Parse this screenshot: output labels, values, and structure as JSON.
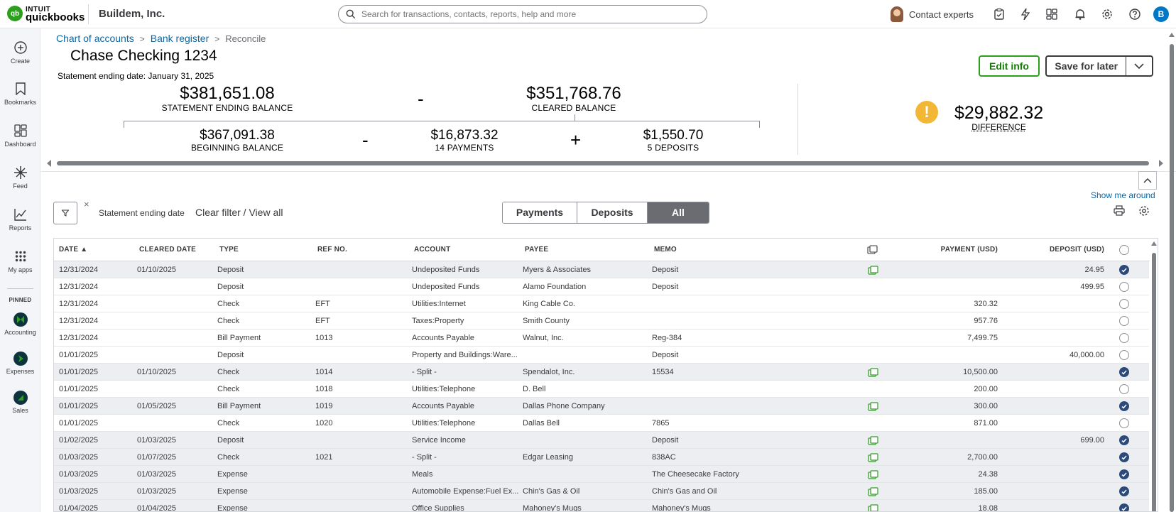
{
  "topbar": {
    "logo_line1": "INTUIT",
    "logo_line2": "quickbooks",
    "logo_mark": "qb",
    "company": "Buildem, Inc.",
    "search_placeholder": "Search for transactions, contacts, reports, help and more",
    "contact_experts": "Contact experts",
    "user_initial": "B"
  },
  "sidebar": {
    "items": [
      {
        "label": "Create",
        "icon": "plus-circle-icon"
      },
      {
        "label": "Bookmarks",
        "icon": "bookmark-icon"
      },
      {
        "label": "Dashboard",
        "icon": "dashboard-icon"
      },
      {
        "label": "Feed",
        "icon": "feed-icon"
      },
      {
        "label": "Reports",
        "icon": "reports-icon"
      },
      {
        "label": "My apps",
        "icon": "apps-grid-icon"
      }
    ],
    "pinned_label": "PINNED",
    "pinned": [
      {
        "label": "Accounting",
        "icon": "accounting-icon"
      },
      {
        "label": "Expenses",
        "icon": "expenses-icon"
      },
      {
        "label": "Sales",
        "icon": "sales-icon"
      }
    ]
  },
  "breadcrumb": {
    "chart_of_accounts": "Chart of accounts",
    "bank_register": "Bank register",
    "current": "Reconcile",
    "sep": ">"
  },
  "header": {
    "account_title": "Chase Checking 1234",
    "statement_date": "Statement ending date: January 31, 2025",
    "edit_info": "Edit info",
    "save_for_later": "Save for later"
  },
  "balances": {
    "statement_ending": {
      "amount": "$381,651.08",
      "caption": "STATEMENT ENDING BALANCE"
    },
    "minus1": "-",
    "cleared": {
      "amount": "$351,768.76",
      "caption": "CLEARED BALANCE"
    },
    "beginning": {
      "amount": "$367,091.38",
      "caption": "BEGINNING BALANCE"
    },
    "minus2": "-",
    "payments": {
      "amount": "$16,873.32",
      "caption": "14 PAYMENTS"
    },
    "plus": "+",
    "deposits": {
      "amount": "$1,550.70",
      "caption": "5 DEPOSITS"
    },
    "difference": {
      "amount": "$29,882.32",
      "caption": "DIFFERENCE"
    },
    "warning_glyph": "!"
  },
  "toolbar": {
    "show_me_around": "Show me around",
    "filter_x": "×",
    "filter_label": "Statement ending date",
    "clear_filter": "Clear filter / View all",
    "tabs": [
      "Payments",
      "Deposits",
      "All"
    ],
    "active_tab": "All"
  },
  "table": {
    "headers": {
      "date": "DATE ▲",
      "cleared_date": "CLEARED DATE",
      "type": "TYPE",
      "ref_no": "REF NO.",
      "account": "ACCOUNT",
      "payee": "PAYEE",
      "memo": "MEMO",
      "payment": "PAYMENT (USD)",
      "deposit": "DEPOSIT (USD)"
    },
    "rows": [
      {
        "date": "12/31/2024",
        "cleared_date": "01/10/2025",
        "type": "Deposit",
        "ref": "",
        "account": "Undeposited Funds",
        "payee": "Myers & Associates",
        "memo": "Deposit",
        "attach": true,
        "payment": "",
        "deposit": "24.95",
        "checked": true
      },
      {
        "date": "12/31/2024",
        "cleared_date": "",
        "type": "Deposit",
        "ref": "",
        "account": "Undeposited Funds",
        "payee": "Alamo Foundation",
        "memo": "Deposit",
        "attach": false,
        "payment": "",
        "deposit": "499.95",
        "checked": false
      },
      {
        "date": "12/31/2024",
        "cleared_date": "",
        "type": "Check",
        "ref": "EFT",
        "account": "Utilities:Internet",
        "payee": "King Cable Co.",
        "memo": "",
        "attach": false,
        "payment": "320.32",
        "deposit": "",
        "checked": false
      },
      {
        "date": "12/31/2024",
        "cleared_date": "",
        "type": "Check",
        "ref": "EFT",
        "account": "Taxes:Property",
        "payee": "Smith County",
        "memo": "",
        "attach": false,
        "payment": "957.76",
        "deposit": "",
        "checked": false
      },
      {
        "date": "12/31/2024",
        "cleared_date": "",
        "type": "Bill Payment",
        "ref": "1013",
        "account": "Accounts Payable",
        "payee": "Walnut, Inc.",
        "memo": "Reg-384",
        "attach": false,
        "payment": "7,499.75",
        "deposit": "",
        "checked": false
      },
      {
        "date": "01/01/2025",
        "cleared_date": "",
        "type": "Deposit",
        "ref": "",
        "account": "Property and Buildings:Ware...",
        "payee": "",
        "memo": "Deposit",
        "attach": false,
        "payment": "",
        "deposit": "40,000.00",
        "checked": false
      },
      {
        "date": "01/01/2025",
        "cleared_date": "01/10/2025",
        "type": "Check",
        "ref": "1014",
        "account": "- Split -",
        "payee": "Spendalot, Inc.",
        "memo": "15534",
        "attach": true,
        "payment": "10,500.00",
        "deposit": "",
        "checked": true
      },
      {
        "date": "01/01/2025",
        "cleared_date": "",
        "type": "Check",
        "ref": "1018",
        "account": "Utilities:Telephone",
        "payee": "D. Bell",
        "memo": "",
        "attach": false,
        "payment": "200.00",
        "deposit": "",
        "checked": false
      },
      {
        "date": "01/01/2025",
        "cleared_date": "01/05/2025",
        "type": "Bill Payment",
        "ref": "1019",
        "account": "Accounts Payable",
        "payee": "Dallas Phone Company",
        "memo": "",
        "attach": true,
        "payment": "300.00",
        "deposit": "",
        "checked": true
      },
      {
        "date": "01/01/2025",
        "cleared_date": "",
        "type": "Check",
        "ref": "1020",
        "account": "Utilities:Telephone",
        "payee": "Dallas Bell",
        "memo": "7865",
        "attach": false,
        "payment": "871.00",
        "deposit": "",
        "checked": false
      },
      {
        "date": "01/02/2025",
        "cleared_date": "01/03/2025",
        "type": "Deposit",
        "ref": "",
        "account": "Service Income",
        "payee": "",
        "memo": "Deposit",
        "attach": true,
        "payment": "",
        "deposit": "699.00",
        "checked": true
      },
      {
        "date": "01/03/2025",
        "cleared_date": "01/07/2025",
        "type": "Check",
        "ref": "1021",
        "account": "- Split -",
        "payee": "Edgar Leasing",
        "memo": "838AC",
        "attach": true,
        "payment": "2,700.00",
        "deposit": "",
        "checked": true
      },
      {
        "date": "01/03/2025",
        "cleared_date": "01/03/2025",
        "type": "Expense",
        "ref": "",
        "account": "Meals",
        "payee": "",
        "memo": "The Cheesecake Factory",
        "attach": true,
        "payment": "24.38",
        "deposit": "",
        "checked": true
      },
      {
        "date": "01/03/2025",
        "cleared_date": "01/03/2025",
        "type": "Expense",
        "ref": "",
        "account": "Automobile Expense:Fuel Ex...",
        "payee": "Chin's Gas & Oil",
        "memo": "Chin's Gas and Oil",
        "attach": true,
        "payment": "185.00",
        "deposit": "",
        "checked": true
      },
      {
        "date": "01/04/2025",
        "cleared_date": "01/04/2025",
        "type": "Expense",
        "ref": "",
        "account": "Office Supplies",
        "payee": "Mahoney's Mugs",
        "memo": "Mahoney's Mugs",
        "attach": true,
        "payment": "18.08",
        "deposit": "",
        "checked": true
      }
    ]
  },
  "colors": {
    "brand_green": "#2ca01c",
    "link_blue": "#0d66a1",
    "checked_blue": "#2c4a7a",
    "warning": "#f2b835"
  }
}
